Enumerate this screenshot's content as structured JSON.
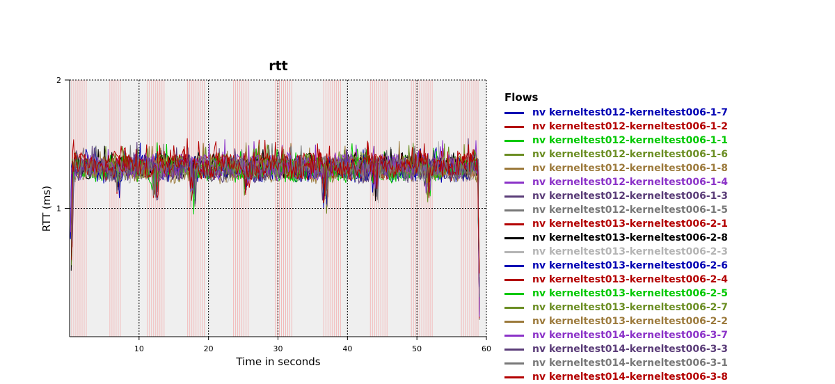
{
  "chart_data": {
    "type": "line",
    "title": "rtt",
    "xlabel": "Time in seconds",
    "ylabel": "RTT (ms)",
    "xlim": [
      0,
      60
    ],
    "ylim": [
      0,
      2
    ],
    "xticks": [
      "10",
      "20",
      "30",
      "40",
      "50",
      "60"
    ],
    "yticks": [
      "1",
      "2"
    ],
    "grid": true,
    "legend_title": "Flows",
    "legend_position": "right",
    "shaded_background": "#efefef",
    "loss_markers_color": "#f2b9b9",
    "loss_marker_times": [
      0.3,
      0.6,
      0.9,
      1.2,
      1.5,
      1.8,
      2.1,
      2.4,
      5.8,
      6.1,
      6.4,
      6.7,
      7.0,
      7.3,
      11.2,
      11.5,
      11.8,
      12.1,
      12.4,
      12.7,
      13.0,
      13.3,
      13.6,
      17.0,
      17.3,
      17.6,
      17.9,
      18.2,
      18.5,
      18.8,
      19.1,
      19.4,
      23.6,
      23.9,
      24.2,
      24.5,
      24.8,
      25.1,
      25.4,
      25.7,
      29.6,
      29.9,
      30.2,
      30.5,
      30.8,
      31.1,
      31.4,
      31.7,
      32.0,
      36.6,
      36.9,
      37.2,
      37.5,
      37.8,
      38.1,
      38.4,
      38.7,
      39.0,
      43.3,
      43.6,
      43.9,
      44.2,
      44.5,
      44.8,
      45.1,
      45.4,
      45.7,
      49.2,
      49.5,
      49.8,
      50.1,
      50.4,
      50.7,
      51.0,
      51.3,
      51.6,
      51.9,
      52.2,
      56.4,
      56.7,
      57.0,
      57.3,
      57.6,
      57.9,
      58.2,
      58.5,
      58.8
    ],
    "dips": [
      [
        0.2,
        0.3
      ],
      [
        7.0,
        0.15
      ],
      [
        12.3,
        0.25
      ],
      [
        17.8,
        0.3
      ],
      [
        25.5,
        0.2
      ],
      [
        36.8,
        0.3
      ],
      [
        44.0,
        0.25
      ],
      [
        51.5,
        0.2
      ]
    ],
    "series": [
      {
        "name": "nv kerneltest012-kerneltest006-1-7",
        "color": "#0000b3",
        "base": 1.3
      },
      {
        "name": "nv kerneltest012-kerneltest006-1-2",
        "color": "#b30000",
        "base": 1.33
      },
      {
        "name": "nv kerneltest012-kerneltest006-1-1",
        "color": "#00c800",
        "base": 1.31
      },
      {
        "name": "nv kerneltest012-kerneltest006-1-6",
        "color": "#6b8e23",
        "base": 1.32
      },
      {
        "name": "nv kerneltest012-kerneltest006-1-8",
        "color": "#9c7a3c",
        "base": 1.3
      },
      {
        "name": "nv kerneltest012-kerneltest006-1-4",
        "color": "#8b32c8",
        "base": 1.33
      },
      {
        "name": "nv kerneltest012-kerneltest006-1-3",
        "color": "#5a3c78",
        "base": 1.31
      },
      {
        "name": "nv kerneltest012-kerneltest006-1-5",
        "color": "#787878",
        "base": 1.32
      },
      {
        "name": "nv kerneltest013-kerneltest006-2-1",
        "color": "#b30000",
        "base": 1.34
      },
      {
        "name": "nv kerneltest013-kerneltest006-2-8",
        "color": "#000000",
        "base": 1.33
      },
      {
        "name": "nv kerneltest013-kerneltest006-2-3",
        "color": "#b4b4b4",
        "base": 1.3
      },
      {
        "name": "nv kerneltest013-kerneltest006-2-6",
        "color": "#0000b3",
        "base": 1.31
      },
      {
        "name": "nv kerneltest013-kerneltest006-2-4",
        "color": "#b30000",
        "base": 1.32
      },
      {
        "name": "nv kerneltest013-kerneltest006-2-5",
        "color": "#00c800",
        "base": 1.3
      },
      {
        "name": "nv kerneltest013-kerneltest006-2-7",
        "color": "#6b8e23",
        "base": 1.33
      },
      {
        "name": "nv kerneltest013-kerneltest006-2-2",
        "color": "#9c7a3c",
        "base": 1.31
      },
      {
        "name": "nv kerneltest014-kerneltest006-3-7",
        "color": "#8b32c8",
        "base": 1.32
      },
      {
        "name": "nv kerneltest014-kerneltest006-3-3",
        "color": "#5a3c78",
        "base": 1.3
      },
      {
        "name": "nv kerneltest014-kerneltest006-3-1",
        "color": "#787878",
        "base": 1.31
      },
      {
        "name": "nv kerneltest014-kerneltest006-3-8",
        "color": "#b30000",
        "base": 1.33
      }
    ]
  }
}
